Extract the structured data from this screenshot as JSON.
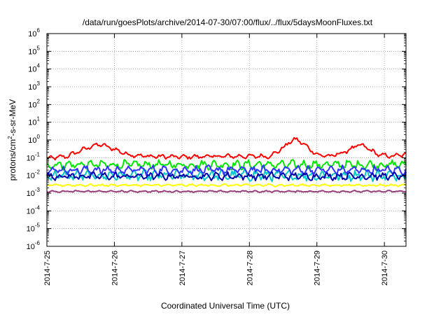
{
  "chart_data": {
    "type": "line",
    "title": "/data/run/goesPlots/archive/2014-07-30/07:00/flux/../flux/5daysMoonFluxes.txt",
    "xlabel": "Coordinated Universal Time (UTC)",
    "ylabel_parts": [
      "protons/cm",
      "2",
      "-s-sr-MeV"
    ],
    "y_scale": "log",
    "ylim_exponents": [
      -6,
      6
    ],
    "y_tick_labels": [
      {
        "base": "10",
        "exp": "6"
      },
      {
        "base": "10",
        "exp": "5"
      },
      {
        "base": "10",
        "exp": "4"
      },
      {
        "base": "10",
        "exp": "3"
      },
      {
        "base": "10",
        "exp": "2"
      },
      {
        "base": "10",
        "exp": "1"
      },
      {
        "base": "10",
        "exp": "0"
      },
      {
        "base": "10",
        "exp": "-1"
      },
      {
        "base": "10",
        "exp": "-2"
      },
      {
        "base": "10",
        "exp": "-3"
      },
      {
        "base": "10",
        "exp": "-4"
      },
      {
        "base": "10",
        "exp": "-5"
      },
      {
        "base": "10",
        "exp": "-6"
      }
    ],
    "x_range_days": [
      0,
      5.32
    ],
    "x_tick_labels": [
      "2014-7-25",
      "2014-7-26",
      "2014-7-27",
      "2014-7-28",
      "2014-7-29",
      "2014-7-30"
    ],
    "grid": true,
    "series": [
      {
        "color": "#ff0000",
        "x": [
          0,
          0.3,
          0.5,
          0.6,
          0.7,
          0.8,
          1.0,
          1.2,
          1.5,
          2.0,
          2.5,
          3.0,
          3.3,
          3.5,
          3.6,
          3.7,
          3.8,
          4.0,
          4.2,
          4.4,
          4.5,
          4.6,
          4.7,
          4.9,
          5.1,
          5.32
        ],
        "y": [
          0.09,
          0.12,
          0.25,
          0.35,
          0.5,
          0.55,
          0.3,
          0.15,
          0.12,
          0.11,
          0.12,
          0.12,
          0.12,
          0.35,
          0.8,
          1.1,
          0.6,
          0.15,
          0.12,
          0.2,
          0.3,
          0.5,
          0.45,
          0.15,
          0.12,
          0.15
        ],
        "noise": 0.15
      },
      {
        "color": "#00e600",
        "x": [
          0,
          5.32
        ],
        "y": [
          0.04,
          0.04
        ],
        "noise": 0.3
      },
      {
        "color": "#00c8c8",
        "x": [
          0,
          5.32
        ],
        "y": [
          0.01,
          0.01
        ],
        "noise": 0.35
      },
      {
        "color": "#3232ff",
        "x": [
          0,
          5.32
        ],
        "y": [
          0.02,
          0.02
        ],
        "noise": 0.3
      },
      {
        "color": "#0000aa",
        "x": [
          0,
          5.32
        ],
        "y": [
          0.009,
          0.009
        ],
        "noise": 0.25
      },
      {
        "color": "#ffff00",
        "x": [
          0,
          5.32
        ],
        "y": [
          0.0028,
          0.0028
        ],
        "noise": 0.08
      },
      {
        "color": "#963c7a",
        "x": [
          0,
          5.32
        ],
        "y": [
          0.00125,
          0.00125
        ],
        "noise": 0.06
      }
    ]
  }
}
